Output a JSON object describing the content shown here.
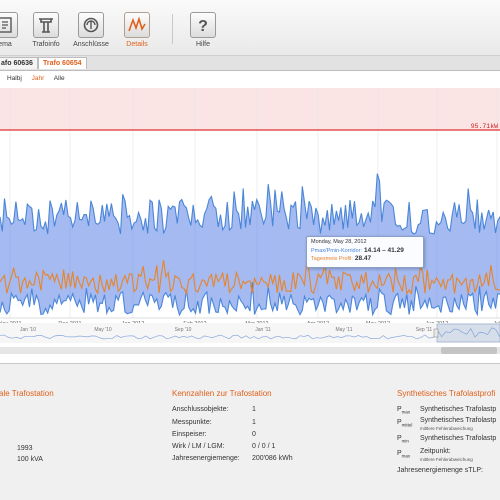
{
  "toolbar": {
    "items": [
      {
        "label": "ema",
        "icon": "schema-icon"
      },
      {
        "label": "Trafoinfo",
        "icon": "pylon-icon"
      },
      {
        "label": "Anschlüsse",
        "icon": "connections-icon"
      },
      {
        "label": "Details",
        "icon": "chart-icon",
        "active": true
      },
      {
        "label": "Hilfe",
        "icon": "help-icon"
      }
    ]
  },
  "tabs": [
    {
      "label": "afo 60636"
    },
    {
      "label": "Trafo 60654",
      "active": true
    }
  ],
  "range_buttons": [
    "Halbj",
    "Jahr",
    "Alle"
  ],
  "threshold_label": "95.71kW",
  "tooltip": {
    "date": "Monday, May 28, 2012",
    "label_minmax": "Pmax/Pmin-Korridor:",
    "value_minmax": "14.14 – 41.29",
    "label_profile": "Tagesmeis Profil:",
    "value_profile": "28.47"
  },
  "chart_data": {
    "type": "area",
    "x_axis_ticks": [
      "Nov 2011",
      "Dec 2011",
      "Jan 2012",
      "Feb 2012",
      "Mar 2012",
      "Apr 2012",
      "May 2012",
      "Jun 2012",
      "Jul"
    ],
    "navigator_ticks": [
      "Jan '10",
      "May '10",
      "Sep '10",
      "Jan '11",
      "May '11",
      "Sep '11"
    ],
    "threshold": 95.71,
    "series": [
      {
        "name": "Pmax/Pmin-Korridor",
        "color": "#4a86d8"
      },
      {
        "name": "Tagesmeis Profil",
        "color": "#e8842c"
      }
    ]
  },
  "info": {
    "col1": {
      "title": "ale Trafostation",
      "values": [
        "1993",
        "100 kVA"
      ]
    },
    "col2": {
      "title": "Kennzahlen zur Trafostation",
      "rows": [
        {
          "label": "Anschlussobjekte:",
          "value": "1"
        },
        {
          "label": "Messpunkte:",
          "value": "1"
        },
        {
          "label": "Einspeiser:",
          "value": "0"
        },
        {
          "label": "Wirk / LM / LGM:",
          "value": "0 / 0 / 1"
        },
        {
          "label": "Jahresenergiemenge:",
          "value": "200'086 kWh"
        }
      ]
    },
    "col3": {
      "title": "Synthetisches Trafolastprofi",
      "rows": [
        {
          "sym": "P",
          "sub": "max",
          "text": "Synthetisches Trafolastp",
          "note": ""
        },
        {
          "sym": "P",
          "sub": "mittel",
          "text": "Synthetisches Trafolastp",
          "note": "mittlere Fehlerabweichung"
        },
        {
          "sym": "P",
          "sub": "min",
          "text": "Synthetisches Trafolastp",
          "note": ""
        },
        {
          "sym": "P",
          "sub": "max",
          "text": "Zeitpunkt:",
          "note": "mittlere Fehlerabweichung"
        }
      ],
      "footer": "Jahresenergiemenge sTLP:"
    }
  }
}
